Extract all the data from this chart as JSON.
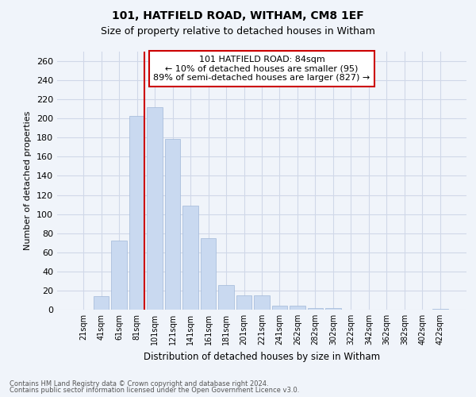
{
  "title1": "101, HATFIELD ROAD, WITHAM, CM8 1EF",
  "title2": "Size of property relative to detached houses in Witham",
  "xlabel": "Distribution of detached houses by size in Witham",
  "ylabel": "Number of detached properties",
  "categories": [
    "21sqm",
    "41sqm",
    "61sqm",
    "81sqm",
    "101sqm",
    "121sqm",
    "141sqm",
    "161sqm",
    "181sqm",
    "201sqm",
    "221sqm",
    "241sqm",
    "262sqm",
    "282sqm",
    "302sqm",
    "322sqm",
    "342sqm",
    "362sqm",
    "382sqm",
    "402sqm",
    "422sqm"
  ],
  "values": [
    0,
    14,
    72,
    203,
    212,
    179,
    109,
    75,
    26,
    15,
    15,
    4,
    4,
    2,
    2,
    0,
    0,
    0,
    0,
    0,
    1
  ],
  "bar_color": "#c9d9f0",
  "bar_edge_color": "#a0b8d8",
  "vline_color": "#cc0000",
  "annotation_text": "101 HATFIELD ROAD: 84sqm\n← 10% of detached houses are smaller (95)\n89% of semi-detached houses are larger (827) →",
  "annotation_box_color": "#ffffff",
  "annotation_box_edge": "#cc0000",
  "ylim": [
    0,
    270
  ],
  "yticks": [
    0,
    20,
    40,
    60,
    80,
    100,
    120,
    140,
    160,
    180,
    200,
    220,
    240,
    260
  ],
  "grid_color": "#d0d8e8",
  "footnote1": "Contains HM Land Registry data © Crown copyright and database right 2024.",
  "footnote2": "Contains public sector information licensed under the Open Government Licence v3.0.",
  "bg_color": "#f0f4fa"
}
